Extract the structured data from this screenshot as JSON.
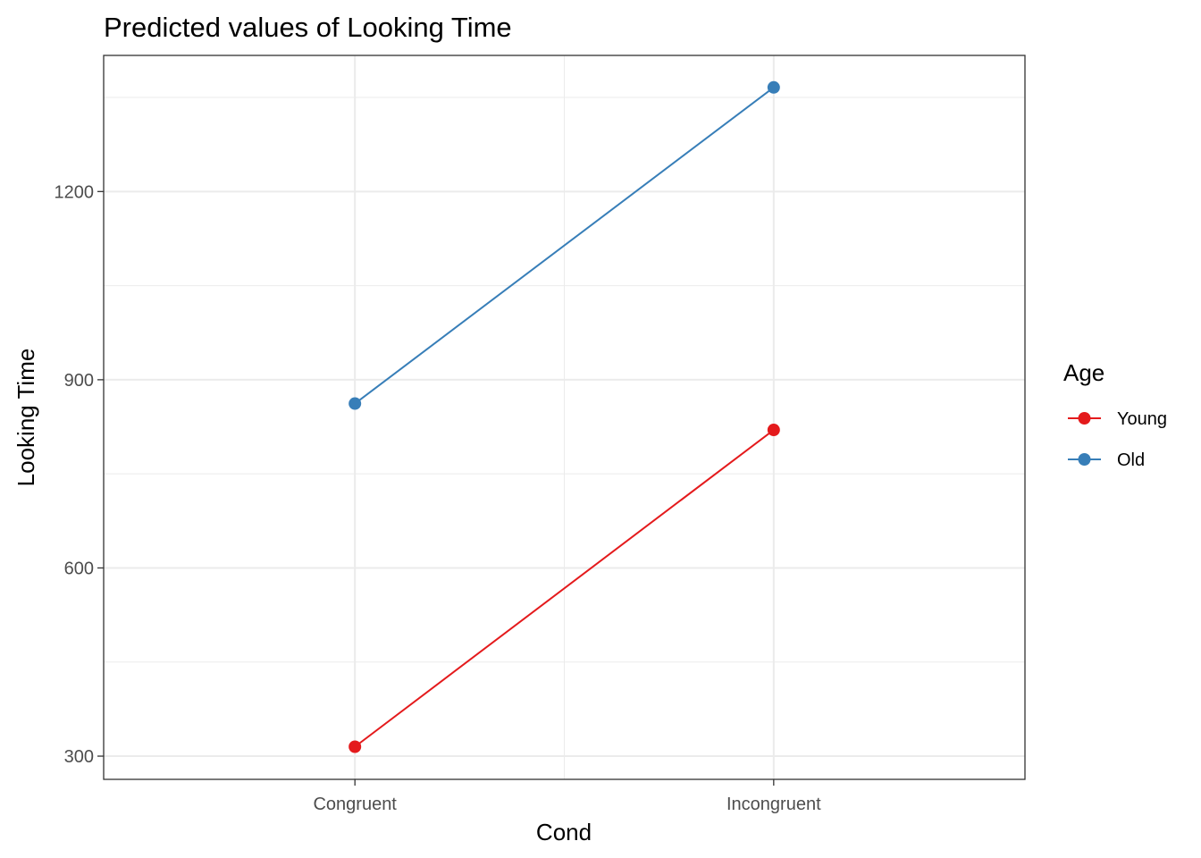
{
  "chart_data": {
    "type": "line",
    "title": "Predicted values of Looking Time",
    "xlabel": "Cond",
    "ylabel": "Looking Time",
    "categories": [
      "Congruent",
      "Incongruent"
    ],
    "yticks": [
      300,
      600,
      900,
      1200
    ],
    "ylim": [
      263,
      1417
    ],
    "grid": true,
    "legend": {
      "title": "Age",
      "position": "right"
    },
    "series": [
      {
        "name": "Young",
        "color": "#e41a1c",
        "values": [
          315,
          820
        ]
      },
      {
        "name": "Old",
        "color": "#377eb8",
        "values": [
          862,
          1366
        ]
      }
    ]
  }
}
